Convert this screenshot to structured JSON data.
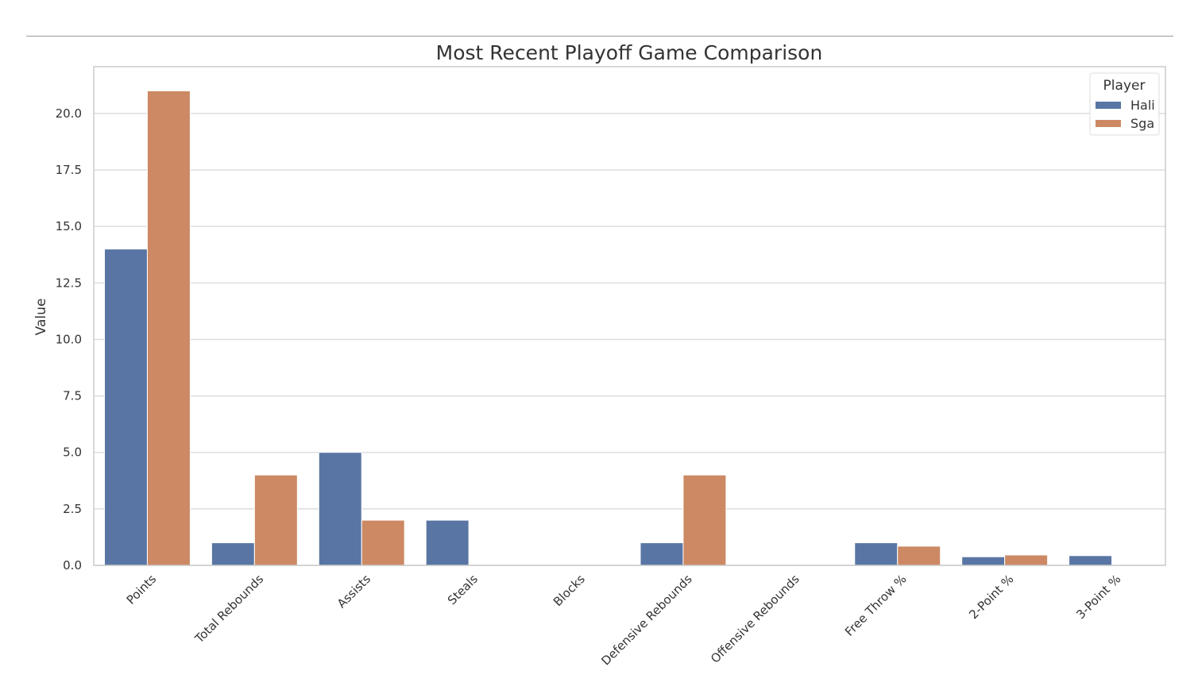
{
  "chart_data": {
    "type": "bar",
    "title": "Most Recent Playoff Game Comparison",
    "xlabel": "",
    "ylabel": "Value",
    "ylim": [
      0,
      22.07
    ],
    "yticks": [
      "0.0",
      "2.5",
      "5.0",
      "7.5",
      "10.0",
      "12.5",
      "15.0",
      "17.5",
      "20.0"
    ],
    "grid": true,
    "legend": {
      "title": "Player",
      "placement": "top-right"
    },
    "categories": [
      "Points",
      "Total Rebounds",
      "Assists",
      "Steals",
      "Blocks",
      "Defensive Rebounds",
      "Offensive Rebounds",
      "Free Throw %",
      "2-Point %",
      "3-Point %"
    ],
    "series": [
      {
        "name": "Hali",
        "color": "#5975a4",
        "values": [
          14,
          1,
          5,
          2,
          0,
          1,
          0,
          1.0,
          0.38,
          0.43
        ]
      },
      {
        "name": "Sga",
        "color": "#cc8963",
        "values": [
          21,
          4,
          2,
          0,
          0,
          4,
          0,
          0.85,
          0.46,
          0
        ]
      }
    ]
  }
}
